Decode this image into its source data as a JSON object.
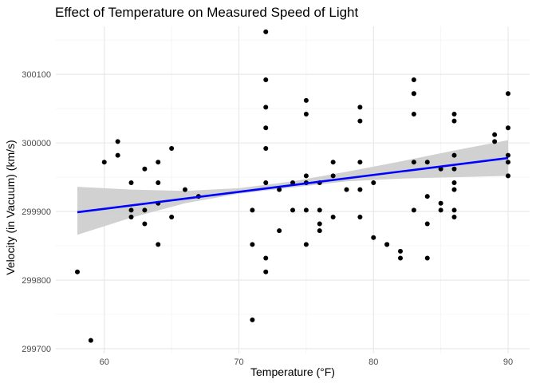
{
  "chart_data": {
    "type": "scatter",
    "title": "Effect of Temperature on Measured Speed of Light",
    "xlabel": "Temperature (°F)",
    "ylabel": "Velocity (in Vacuum) (km/s)",
    "xlim": [
      56.4,
      91.6
    ],
    "ylim": [
      299693,
      300170
    ],
    "x_ticks": [
      60,
      70,
      80,
      90
    ],
    "y_ticks": [
      299700,
      299800,
      299900,
      300000,
      300100
    ],
    "grid": true,
    "points": [
      [
        58,
        299812
      ],
      [
        59,
        299712
      ],
      [
        60,
        299972
      ],
      [
        61,
        300002
      ],
      [
        61,
        299982
      ],
      [
        62,
        299942
      ],
      [
        62,
        299902
      ],
      [
        62,
        299892
      ],
      [
        63,
        299962
      ],
      [
        63,
        299902
      ],
      [
        63,
        299882
      ],
      [
        64,
        299972
      ],
      [
        64,
        299942
      ],
      [
        64,
        299912
      ],
      [
        64,
        299852
      ],
      [
        65,
        299992
      ],
      [
        65,
        299892
      ],
      [
        66,
        299932
      ],
      [
        67,
        299922
      ],
      [
        71,
        299902
      ],
      [
        71,
        299852
      ],
      [
        71,
        299742
      ],
      [
        72,
        300162
      ],
      [
        72,
        300092
      ],
      [
        72,
        300052
      ],
      [
        72,
        300022
      ],
      [
        72,
        299992
      ],
      [
        72,
        299942
      ],
      [
        72,
        299832
      ],
      [
        72,
        299812
      ],
      [
        73,
        299932
      ],
      [
        73,
        299872
      ],
      [
        74,
        299942
      ],
      [
        74,
        299902
      ],
      [
        75,
        300062
      ],
      [
        75,
        300042
      ],
      [
        75,
        299952
      ],
      [
        75,
        299942
      ],
      [
        75,
        299902
      ],
      [
        75,
        299852
      ],
      [
        76,
        299942
      ],
      [
        76,
        299902
      ],
      [
        76,
        299882
      ],
      [
        76,
        299872
      ],
      [
        77,
        299972
      ],
      [
        77,
        299952
      ],
      [
        77,
        299892
      ],
      [
        78,
        299932
      ],
      [
        79,
        300052
      ],
      [
        79,
        300032
      ],
      [
        79,
        299972
      ],
      [
        79,
        299932
      ],
      [
        79,
        299892
      ],
      [
        80,
        299942
      ],
      [
        80,
        299862
      ],
      [
        81,
        299852
      ],
      [
        81,
        299852
      ],
      [
        82,
        299842
      ],
      [
        82,
        299832
      ],
      [
        83,
        300092
      ],
      [
        83,
        300072
      ],
      [
        83,
        300072
      ],
      [
        83,
        300042
      ],
      [
        83,
        299972
      ],
      [
        83,
        299902
      ],
      [
        84,
        299972
      ],
      [
        84,
        299922
      ],
      [
        84,
        299882
      ],
      [
        84,
        299832
      ],
      [
        85,
        299962
      ],
      [
        85,
        299912
      ],
      [
        85,
        299902
      ],
      [
        86,
        300042
      ],
      [
        86,
        300032
      ],
      [
        86,
        299982
      ],
      [
        86,
        299962
      ],
      [
        86,
        299942
      ],
      [
        86,
        299932
      ],
      [
        86,
        299902
      ],
      [
        86,
        299892
      ],
      [
        89,
        300012
      ],
      [
        89,
        300002
      ],
      [
        90,
        300072
      ],
      [
        90,
        300022
      ],
      [
        90,
        299982
      ],
      [
        90,
        299972
      ],
      [
        90,
        299952
      ]
    ],
    "fit_line": {
      "x": [
        58,
        90
      ],
      "y": [
        299899,
        299978
      ],
      "color": "#0000ff"
    },
    "confidence_band": {
      "x": [
        58,
        62,
        66,
        70,
        74,
        78,
        82,
        86,
        90
      ],
      "lower": [
        299866,
        299891,
        299912,
        299926,
        299935,
        299944,
        299948,
        299950,
        299952
      ],
      "upper": [
        299936,
        299932,
        299930,
        299934,
        299944,
        299958,
        299973,
        299989,
        300004
      ],
      "color": "#cccccc"
    },
    "point_color": "#000000"
  }
}
